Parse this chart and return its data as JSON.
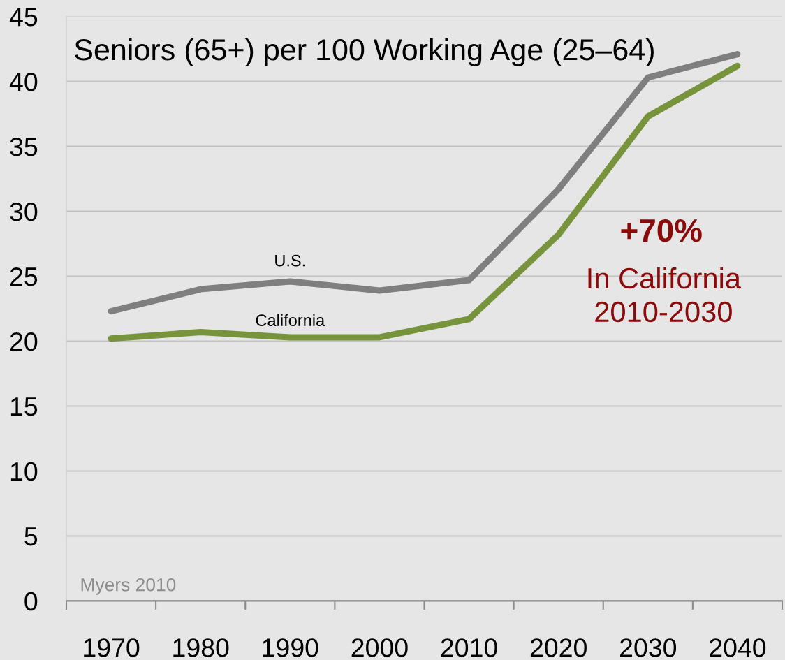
{
  "chart_data": {
    "type": "line",
    "title": "Seniors (65+) per 100 Working Age (25–64)",
    "categories": [
      "1970",
      "1980",
      "1990",
      "2000",
      "2010",
      "2020",
      "2030",
      "2040"
    ],
    "series": [
      {
        "name": "U.S.",
        "color": "#7f7f7f",
        "values": [
          22.3,
          24.0,
          24.6,
          23.9,
          24.7,
          31.7,
          40.3,
          42.1
        ]
      },
      {
        "name": "California",
        "color": "#77933c",
        "values": [
          20.2,
          20.7,
          20.3,
          20.3,
          21.7,
          28.2,
          37.3,
          41.2
        ]
      }
    ],
    "ylim": [
      0,
      45
    ],
    "yticks": [
      0,
      5,
      10,
      15,
      20,
      25,
      30,
      35,
      40,
      45
    ],
    "grid": "y",
    "legend": false,
    "line_style": "solid",
    "annotations": [
      "+70%",
      "In California\n2010-2030",
      "Myers 2010"
    ]
  }
}
